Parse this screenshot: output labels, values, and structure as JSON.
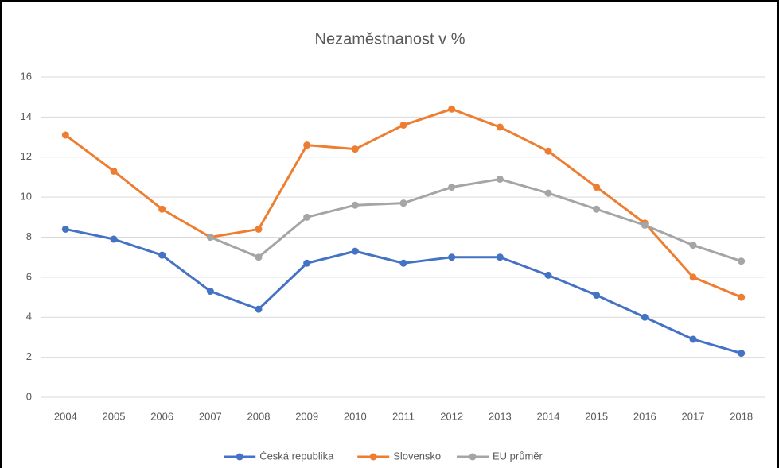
{
  "chart_data": {
    "type": "line",
    "title": "Nezaměstnanost v %",
    "categories": [
      "2004",
      "2005",
      "2006",
      "2007",
      "2008",
      "2009",
      "2010",
      "2011",
      "2012",
      "2013",
      "2014",
      "2015",
      "2016",
      "2017",
      "2018"
    ],
    "series": [
      {
        "name": "Česká republika",
        "color": "#4472c4",
        "values": [
          8.4,
          7.9,
          7.1,
          5.3,
          4.4,
          6.7,
          7.3,
          6.7,
          7.0,
          7.0,
          6.1,
          5.1,
          4.0,
          2.9,
          2.2
        ]
      },
      {
        "name": "Slovensko",
        "color": "#ed7d31",
        "values": [
          13.1,
          11.3,
          9.4,
          8.0,
          8.4,
          12.6,
          12.4,
          13.6,
          14.4,
          13.5,
          12.3,
          10.5,
          8.7,
          6.0,
          5.0
        ]
      },
      {
        "name": "EU průměr",
        "color": "#a5a5a5",
        "values": [
          null,
          null,
          null,
          8.0,
          7.0,
          9.0,
          9.6,
          9.7,
          10.5,
          10.9,
          10.2,
          9.4,
          8.6,
          7.6,
          6.8
        ]
      }
    ],
    "ylim": [
      0,
      16
    ],
    "yticks": [
      0,
      2,
      4,
      6,
      8,
      10,
      12,
      14,
      16
    ],
    "grid": true,
    "legend": "bottom"
  }
}
